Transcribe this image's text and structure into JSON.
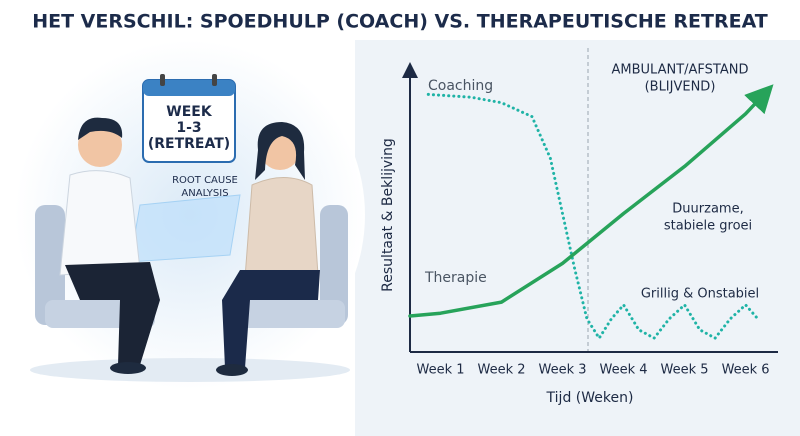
{
  "chart_data": {
    "type": "line",
    "title": "HET VERSCHIL: SPOEDHULP (COACH) VS. THERAPEUTISCHE RETREAT",
    "x_label": "Tijd (Weken)",
    "y_label": "Resultaat & Beklijving",
    "xlim": [
      0.5,
      6.4
    ],
    "ylim": [
      0,
      100
    ],
    "xticks": [
      {
        "value": 1,
        "label": "Week 1"
      },
      {
        "value": 2,
        "label": "Week 2"
      },
      {
        "value": 3,
        "label": "Week 3"
      },
      {
        "value": 4,
        "label": "Week 4"
      },
      {
        "value": 5,
        "label": "Week 5"
      },
      {
        "value": 6,
        "label": "Week 6"
      }
    ],
    "series": [
      {
        "name": "Coaching",
        "color": "#1fb3a6",
        "x": [
          0.8,
          1.5,
          2.0,
          2.5,
          2.8,
          3.0,
          3.2,
          3.4,
          3.6,
          3.8,
          4.0,
          4.25,
          4.5,
          4.75,
          5.0,
          5.25,
          5.5,
          5.75,
          6.0,
          6.2
        ],
        "values": [
          93,
          92,
          90,
          85,
          70,
          50,
          30,
          12,
          5,
          12,
          17,
          8,
          5,
          12,
          17,
          8,
          5,
          12,
          17,
          12
        ]
      },
      {
        "name": "Therapie",
        "color": "#27a35a",
        "x": [
          0.5,
          1.0,
          2.0,
          3.0,
          4.0,
          5.0,
          6.0,
          6.3
        ],
        "values": [
          13,
          14,
          18,
          32,
          50,
          67,
          86,
          93
        ]
      }
    ],
    "annotations": [
      [
        "AMBULANT/AFSTAND",
        "(BLIJVEND)"
      ],
      [
        "Duurzame,",
        "stabiele groei"
      ],
      [
        "Grillig & Onstabiel"
      ]
    ]
  },
  "illustration": {
    "calendar": [
      "WEEK",
      "1-3",
      "(RETREAT)"
    ],
    "screen_label": [
      "ROOT CAUSE",
      "ANALYSIS"
    ]
  }
}
